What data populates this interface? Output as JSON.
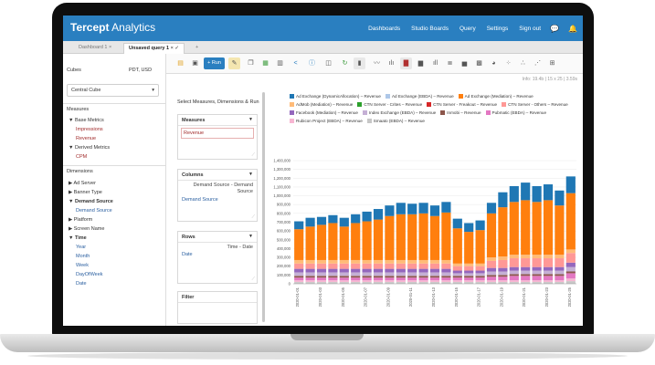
{
  "app": {
    "brand_bold": "Tercept",
    "brand_rest": " Analytics",
    "nav": [
      "Dashboards",
      "Studio Boards",
      "Query",
      "Settings",
      "Sign out"
    ]
  },
  "tabs": [
    {
      "label": "Dashboard 1",
      "close": "×"
    },
    {
      "label": "Unsaved query 1",
      "close": "×",
      "check": "✓"
    },
    {
      "label": "+"
    }
  ],
  "left": {
    "cubes_label": "Cubes",
    "timezone": "PDT, USD",
    "cube_selected": "Central Cube",
    "measures_label": "Measures",
    "base_metrics": "Base Metrics",
    "impressions": "Impressions",
    "revenue": "Revenue",
    "derived_metrics": "Derived Metrics",
    "cpm": "CPM",
    "dimensions_label": "Dimensions",
    "ad_server": "Ad Server",
    "banner_type": "Banner Type",
    "demand_source": "Demand Source",
    "demand_source_child": "Demand Source",
    "platform": "Platform",
    "screen_name": "Screen Name",
    "time": "Time",
    "year": "Year",
    "month": "Month",
    "week": "Week",
    "dayofweek": "DayOfWeek",
    "date": "Date"
  },
  "toolbar": {
    "run_label": "+ Run"
  },
  "mid": {
    "title": "Select Measures, Dimensions & Run",
    "measures": "Measures",
    "measures_item": "Revenue",
    "columns": "Columns",
    "columns_hint": "Demand Source - Demand Source",
    "columns_item": "Demand Source",
    "rows": "Rows",
    "rows_hint": "Time - Date",
    "rows_item": "Date",
    "filter": "Filter"
  },
  "info": "Info:  19.4b  |  15 x 25  |  3.59s",
  "chart_data": {
    "type": "bar",
    "stacked": true,
    "ylim": [
      0,
      1400000
    ],
    "yticks": [
      "0",
      "100,000",
      "200,000",
      "300,000",
      "400,000",
      "500,000",
      "600,000",
      "700,000",
      "800,000",
      "900,000",
      "1,000,000",
      "1,100,000",
      "1,200,000",
      "1,300,000",
      "1,400,000"
    ],
    "categories": [
      "2020-01-01",
      "2020-01-02",
      "2020-01-03",
      "2020-01-04",
      "2020-01-05",
      "2020-01-06",
      "2020-01-07",
      "2020-01-08",
      "2020-01-09",
      "2020-01-10",
      "2020-01-11",
      "2020-01-12",
      "2020-01-13",
      "2020-01-14",
      "2020-01-15",
      "2020-01-16",
      "2020-01-17",
      "2020-01-18",
      "2020-01-19",
      "2020-01-20",
      "2020-01-21",
      "2020-01-22",
      "2020-01-23",
      "2020-01-24",
      "2020-01-25"
    ],
    "xtick_labels": [
      "2020-01-01",
      "2020-01-03",
      "2020-01-05",
      "2020-01-07",
      "2020-01-09",
      "2020-01-11",
      "2020-01-13",
      "2020-01-15",
      "2020-01-17",
      "2020-01-19",
      "2020-01-21",
      "2020-01-23",
      "2020-01-25"
    ],
    "series": [
      {
        "name": "Ad Exchange (DynamicAllocation) – Revenue",
        "color": "#1f77b4",
        "values": [
          90000,
          100000,
          90000,
          90000,
          100000,
          100000,
          110000,
          120000,
          120000,
          130000,
          120000,
          120000,
          120000,
          120000,
          110000,
          100000,
          110000,
          120000,
          170000,
          180000,
          200000,
          180000,
          180000,
          170000,
          190000
        ]
      },
      {
        "name": "Ad Exchange (EBDA) – Revenue",
        "color": "#aec7e8",
        "values": [
          0,
          0,
          0,
          0,
          0,
          0,
          0,
          0,
          0,
          0,
          0,
          0,
          0,
          0,
          0,
          0,
          0,
          0,
          0,
          0,
          0,
          0,
          0,
          0,
          0
        ]
      },
      {
        "name": "Ad Exchange (Mediation) – Revenue",
        "color": "#ff7f0e",
        "values": [
          350000,
          380000,
          400000,
          420000,
          380000,
          420000,
          440000,
          460000,
          500000,
          520000,
          520000,
          530000,
          500000,
          540000,
          400000,
          360000,
          380000,
          500000,
          560000,
          600000,
          620000,
          600000,
          620000,
          560000,
          640000
        ]
      },
      {
        "name": "AdMob (Mediation) – Revenue",
        "color": "#ffbb78",
        "values": [
          40000,
          40000,
          40000,
          40000,
          40000,
          40000,
          40000,
          40000,
          40000,
          40000,
          40000,
          40000,
          40000,
          40000,
          30000,
          30000,
          30000,
          40000,
          40000,
          40000,
          40000,
          40000,
          40000,
          40000,
          40000
        ]
      },
      {
        "name": "CTN Server - Crites – Revenue",
        "color": "#2ca02c",
        "values": [
          0,
          0,
          0,
          0,
          0,
          0,
          0,
          0,
          0,
          0,
          0,
          0,
          0,
          0,
          0,
          0,
          0,
          0,
          0,
          0,
          0,
          0,
          0,
          0,
          0
        ]
      },
      {
        "name": "CTN Server - Freakout – Revenue",
        "color": "#d62728",
        "values": [
          0,
          0,
          0,
          0,
          0,
          0,
          0,
          0,
          0,
          0,
          0,
          0,
          0,
          0,
          0,
          0,
          0,
          0,
          0,
          0,
          0,
          0,
          0,
          0,
          0
        ]
      },
      {
        "name": "CTN Server - Others – Revenue",
        "color": "#ff9896",
        "values": [
          60000,
          60000,
          60000,
          60000,
          60000,
          60000,
          60000,
          60000,
          60000,
          60000,
          60000,
          60000,
          60000,
          60000,
          50000,
          50000,
          50000,
          80000,
          90000,
          100000,
          100000,
          100000,
          100000,
          100000,
          110000
        ]
      },
      {
        "name": "Facebook (Mediation) – Revenue",
        "color": "#9467bd",
        "values": [
          40000,
          40000,
          40000,
          40000,
          40000,
          40000,
          40000,
          40000,
          40000,
          40000,
          40000,
          40000,
          40000,
          40000,
          30000,
          30000,
          30000,
          40000,
          40000,
          40000,
          40000,
          40000,
          40000,
          40000,
          50000
        ]
      },
      {
        "name": "Index Exchange (EBDA) – Revenue",
        "color": "#c5b0d5",
        "values": [
          40000,
          40000,
          40000,
          40000,
          40000,
          40000,
          40000,
          40000,
          40000,
          40000,
          40000,
          40000,
          40000,
          40000,
          30000,
          30000,
          30000,
          40000,
          40000,
          40000,
          40000,
          40000,
          40000,
          40000,
          50000
        ]
      },
      {
        "name": "Inmobi – Revenue",
        "color": "#8c564b",
        "values": [
          20000,
          20000,
          20000,
          20000,
          20000,
          20000,
          20000,
          20000,
          20000,
          20000,
          20000,
          20000,
          20000,
          20000,
          20000,
          20000,
          20000,
          20000,
          20000,
          20000,
          20000,
          20000,
          20000,
          20000,
          20000
        ]
      },
      {
        "name": "Pubmatic (EBDA) – Revenue",
        "color": "#e377c2",
        "values": [
          30000,
          30000,
          30000,
          30000,
          30000,
          30000,
          30000,
          30000,
          30000,
          30000,
          30000,
          30000,
          30000,
          30000,
          30000,
          30000,
          30000,
          40000,
          40000,
          50000,
          50000,
          50000,
          50000,
          50000,
          60000
        ]
      },
      {
        "name": "Rubicon Project (EBDA) – Revenue",
        "color": "#f7b6d2",
        "values": [
          20000,
          20000,
          20000,
          20000,
          20000,
          20000,
          20000,
          20000,
          20000,
          20000,
          20000,
          20000,
          20000,
          20000,
          20000,
          20000,
          20000,
          20000,
          20000,
          20000,
          20000,
          20000,
          20000,
          20000,
          30000
        ]
      },
      {
        "name": "Smaato (EBDA) – Revenue",
        "color": "#c7c7c7",
        "values": [
          20000,
          20000,
          20000,
          20000,
          20000,
          20000,
          20000,
          20000,
          20000,
          20000,
          20000,
          20000,
          20000,
          20000,
          20000,
          20000,
          20000,
          20000,
          20000,
          20000,
          20000,
          20000,
          20000,
          20000,
          30000
        ]
      }
    ]
  }
}
